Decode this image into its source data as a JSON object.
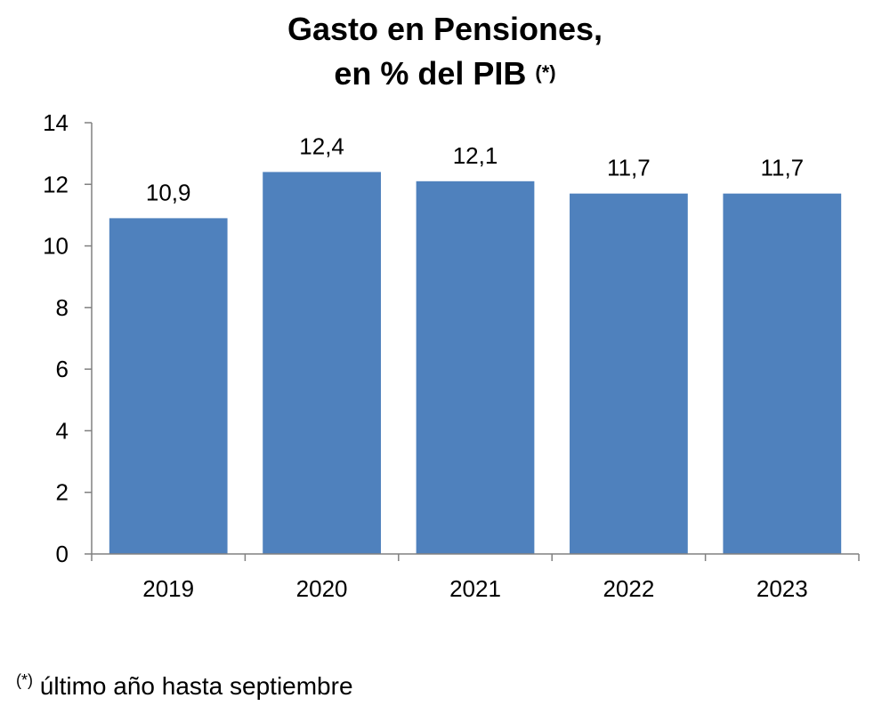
{
  "chart_data": {
    "type": "bar",
    "title_line1": "Gasto en Pensiones,",
    "title_line2": "en % del PIB",
    "title_marker": "(*)",
    "categories": [
      "2019",
      "2020",
      "2021",
      "2022",
      "2023"
    ],
    "values": [
      10.9,
      12.4,
      12.1,
      11.7,
      11.7
    ],
    "value_labels": [
      "10,9",
      "12,4",
      "12,1",
      "11,7",
      "11,7"
    ],
    "ylim": [
      0,
      14
    ],
    "yticks": [
      0,
      2,
      4,
      6,
      8,
      10,
      12,
      14
    ],
    "ytick_labels": [
      "0",
      "2",
      "4",
      "6",
      "8",
      "10",
      "12",
      "14"
    ],
    "xlabel": "",
    "ylabel": "",
    "grid": false,
    "legend": "none",
    "bar_color": "#4f81bd"
  },
  "footnote": {
    "marker": "(*)",
    "text": " último año hasta septiembre"
  }
}
